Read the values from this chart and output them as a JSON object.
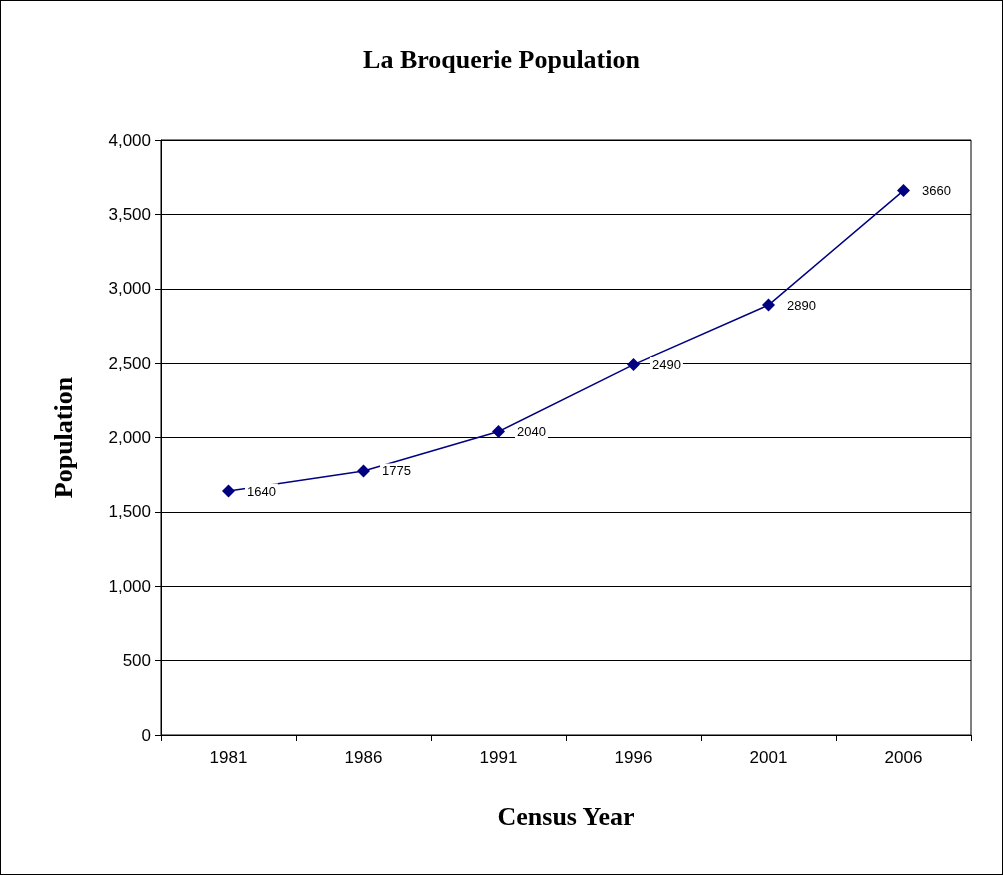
{
  "chart_data": {
    "type": "line",
    "title": "La Broquerie Population",
    "xlabel": "Census Year",
    "ylabel": "Population",
    "categories": [
      "1981",
      "1986",
      "1991",
      "1996",
      "2001",
      "2006"
    ],
    "series": [
      {
        "color": "#000080",
        "values": [
          1640,
          1775,
          2040,
          2490,
          2890,
          3660
        ]
      }
    ],
    "ylim": [
      0,
      4000
    ],
    "yticks": [
      0,
      500,
      {
        "value": 1000,
        "label": "1,000"
      },
      {
        "value": 1500,
        "label": "1,500"
      },
      {
        "value": 2000,
        "label": "2,000"
      },
      {
        "value": 2500,
        "label": "2,500"
      },
      {
        "value": 3000,
        "label": "3,000"
      },
      {
        "value": 3500,
        "label": "3,500"
      },
      {
        "value": 4000,
        "label": "4,000"
      }
    ],
    "grid": "y",
    "marker": "diamond",
    "data_labels": true
  }
}
